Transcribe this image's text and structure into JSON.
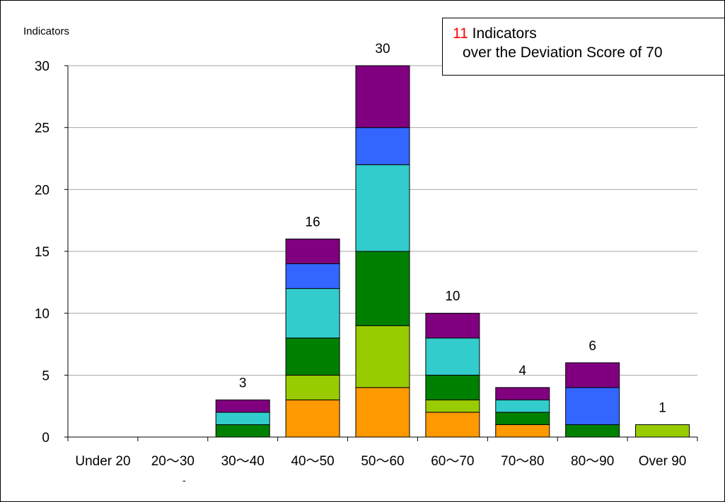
{
  "chart_data": {
    "type": "bar",
    "stacked": true,
    "ylabel": "Indicators",
    "ylim": [
      0,
      30
    ],
    "yticks": [
      0,
      5,
      10,
      15,
      20,
      25,
      30
    ],
    "grid": true,
    "categories": [
      "Under 20",
      "20～30",
      "30～40",
      "40～50",
      "50～60",
      "60～70",
      "70～80",
      "80～90",
      "Over 90"
    ],
    "totals": [
      "",
      "",
      "3",
      "16",
      "30",
      "10",
      "4",
      "6",
      "1"
    ],
    "series": [
      {
        "color": "#ff9900",
        "values": [
          0,
          0,
          0,
          3,
          4,
          2,
          1,
          0,
          0
        ]
      },
      {
        "color": "#99cc00",
        "values": [
          0,
          0,
          0,
          2,
          5,
          1,
          0,
          0,
          1
        ]
      },
      {
        "color": "#008000",
        "values": [
          0,
          0,
          1,
          3,
          6,
          2,
          1,
          1,
          0
        ]
      },
      {
        "color": "#33cccc",
        "values": [
          0,
          0,
          1,
          4,
          7,
          3,
          1,
          0,
          0
        ]
      },
      {
        "color": "#3366ff",
        "values": [
          0,
          0,
          0,
          2,
          3,
          0,
          0,
          3,
          0
        ]
      },
      {
        "color": "#800080",
        "values": [
          0,
          0,
          1,
          2,
          5,
          2,
          1,
          2,
          0
        ]
      }
    ],
    "annotation": {
      "number": "11",
      "line1": " Indicators",
      "line2": "over the Deviation Score of 70"
    },
    "continuation_mark": "-"
  }
}
